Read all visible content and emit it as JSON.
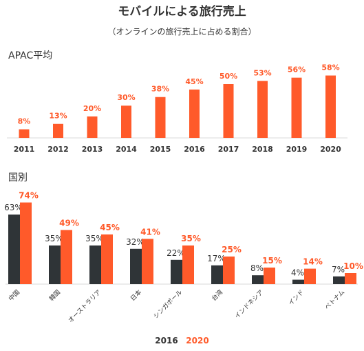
{
  "colors": {
    "orange": "#FF5A2A",
    "dark": "#2F3437",
    "text": "#333333",
    "axis": "#d9d9d9"
  },
  "header": {
    "title": "モバイルによる旅行売上",
    "subtitle": "（オンラインの旅行売上に占める割合）"
  },
  "chart_data": [
    {
      "type": "bar",
      "title": "APAC平均",
      "categories": [
        "2011",
        "2012",
        "2013",
        "2014",
        "2015",
        "2016",
        "2017",
        "2018",
        "2019",
        "2020"
      ],
      "values": [
        8,
        13,
        20,
        30,
        38,
        45,
        50,
        53,
        56,
        58
      ],
      "value_labels": [
        "8%",
        "13%",
        "20%",
        "30%",
        "38%",
        "45%",
        "50%",
        "53%",
        "56%",
        "58%"
      ],
      "unit": "%",
      "grid": false,
      "color": "#FF5A2A"
    },
    {
      "type": "bar",
      "title": "国別",
      "categories": [
        "中国",
        "韓国",
        "オーストラリア",
        "日本",
        "シンガポール",
        "台湾",
        "インドネシア",
        "インド",
        "ベトナム"
      ],
      "unit": "%",
      "grid": false,
      "legend_position": "bottom-center",
      "series": [
        {
          "name": "2016",
          "color": "#2F3437",
          "values": [
            63,
            35,
            35,
            32,
            22,
            17,
            8,
            4,
            7
          ],
          "value_labels": [
            "63%",
            "35%",
            "35%",
            "32%",
            "22%",
            "17%",
            "8%",
            "4%",
            "7%"
          ]
        },
        {
          "name": "2020",
          "color": "#FF5A2A",
          "values": [
            74,
            49,
            45,
            41,
            35,
            25,
            15,
            14,
            10
          ],
          "value_labels": [
            "74%",
            "49%",
            "45%",
            "41%",
            "35%",
            "25%",
            "15%",
            "14%",
            "10%"
          ]
        }
      ]
    }
  ]
}
